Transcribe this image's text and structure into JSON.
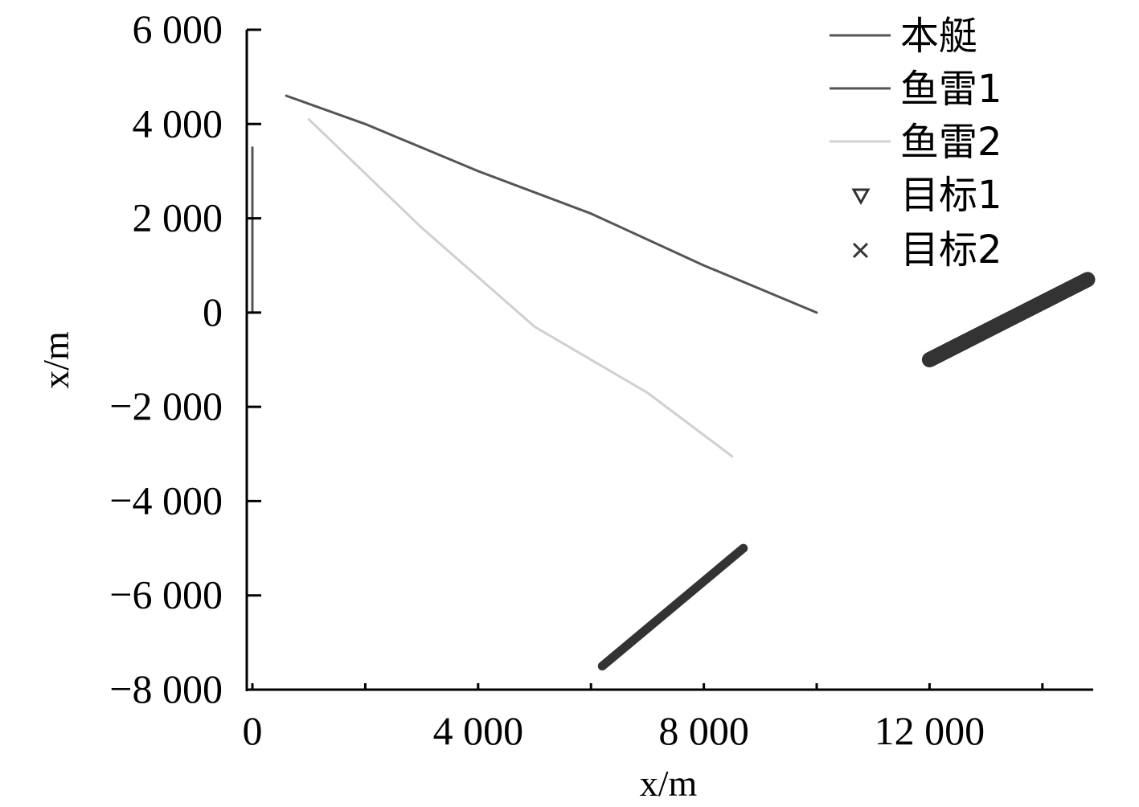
{
  "chart_data": {
    "type": "line",
    "title": "",
    "xlabel": "x/m",
    "ylabel": "x/m",
    "xlim": [
      -100,
      14900
    ],
    "ylim": [
      -8000,
      6000
    ],
    "x_ticks": [
      0,
      4000,
      8000,
      12000
    ],
    "x_tick_labels": [
      "0",
      "4 000",
      "8 000",
      "12 000"
    ],
    "x_minor_ticks": [
      2000,
      6000,
      10000,
      14000
    ],
    "y_ticks": [
      6000,
      4000,
      2000,
      0,
      -2000,
      -4000,
      -6000,
      -8000
    ],
    "y_tick_labels": [
      "6 000",
      "4 000",
      "2 000",
      "0",
      "−2 000",
      "−4 000",
      "−6 000",
      "−8 000"
    ],
    "grid": false,
    "legend_position": "top-right",
    "series": [
      {
        "name": "本艇",
        "kind": "line",
        "color": "#555555",
        "points": [
          [
            0,
            0
          ],
          [
            0,
            3500
          ]
        ]
      },
      {
        "name": "鱼雷1",
        "kind": "line",
        "color": "#555555",
        "points": [
          [
            600,
            4600
          ],
          [
            2000,
            4000
          ],
          [
            4000,
            3000
          ],
          [
            6000,
            2100
          ],
          [
            8000,
            1000
          ],
          [
            10000,
            0
          ]
        ]
      },
      {
        "name": "鱼雷2",
        "kind": "line",
        "color": "#d0d0d0",
        "points": [
          [
            1000,
            4100
          ],
          [
            3000,
            1800
          ],
          [
            5000,
            -300
          ],
          [
            7000,
            -1700
          ],
          [
            8500,
            -3050
          ]
        ]
      },
      {
        "name": "目标1",
        "kind": "marker",
        "marker": "triangle-down",
        "color": "#333333",
        "points": [
          [
            12000,
            -1000
          ],
          [
            14800,
            700
          ]
        ]
      },
      {
        "name": "目标2",
        "kind": "marker",
        "marker": "x",
        "color": "#333333",
        "points": [
          [
            6200,
            -7500
          ],
          [
            8700,
            -5000
          ]
        ]
      }
    ]
  }
}
